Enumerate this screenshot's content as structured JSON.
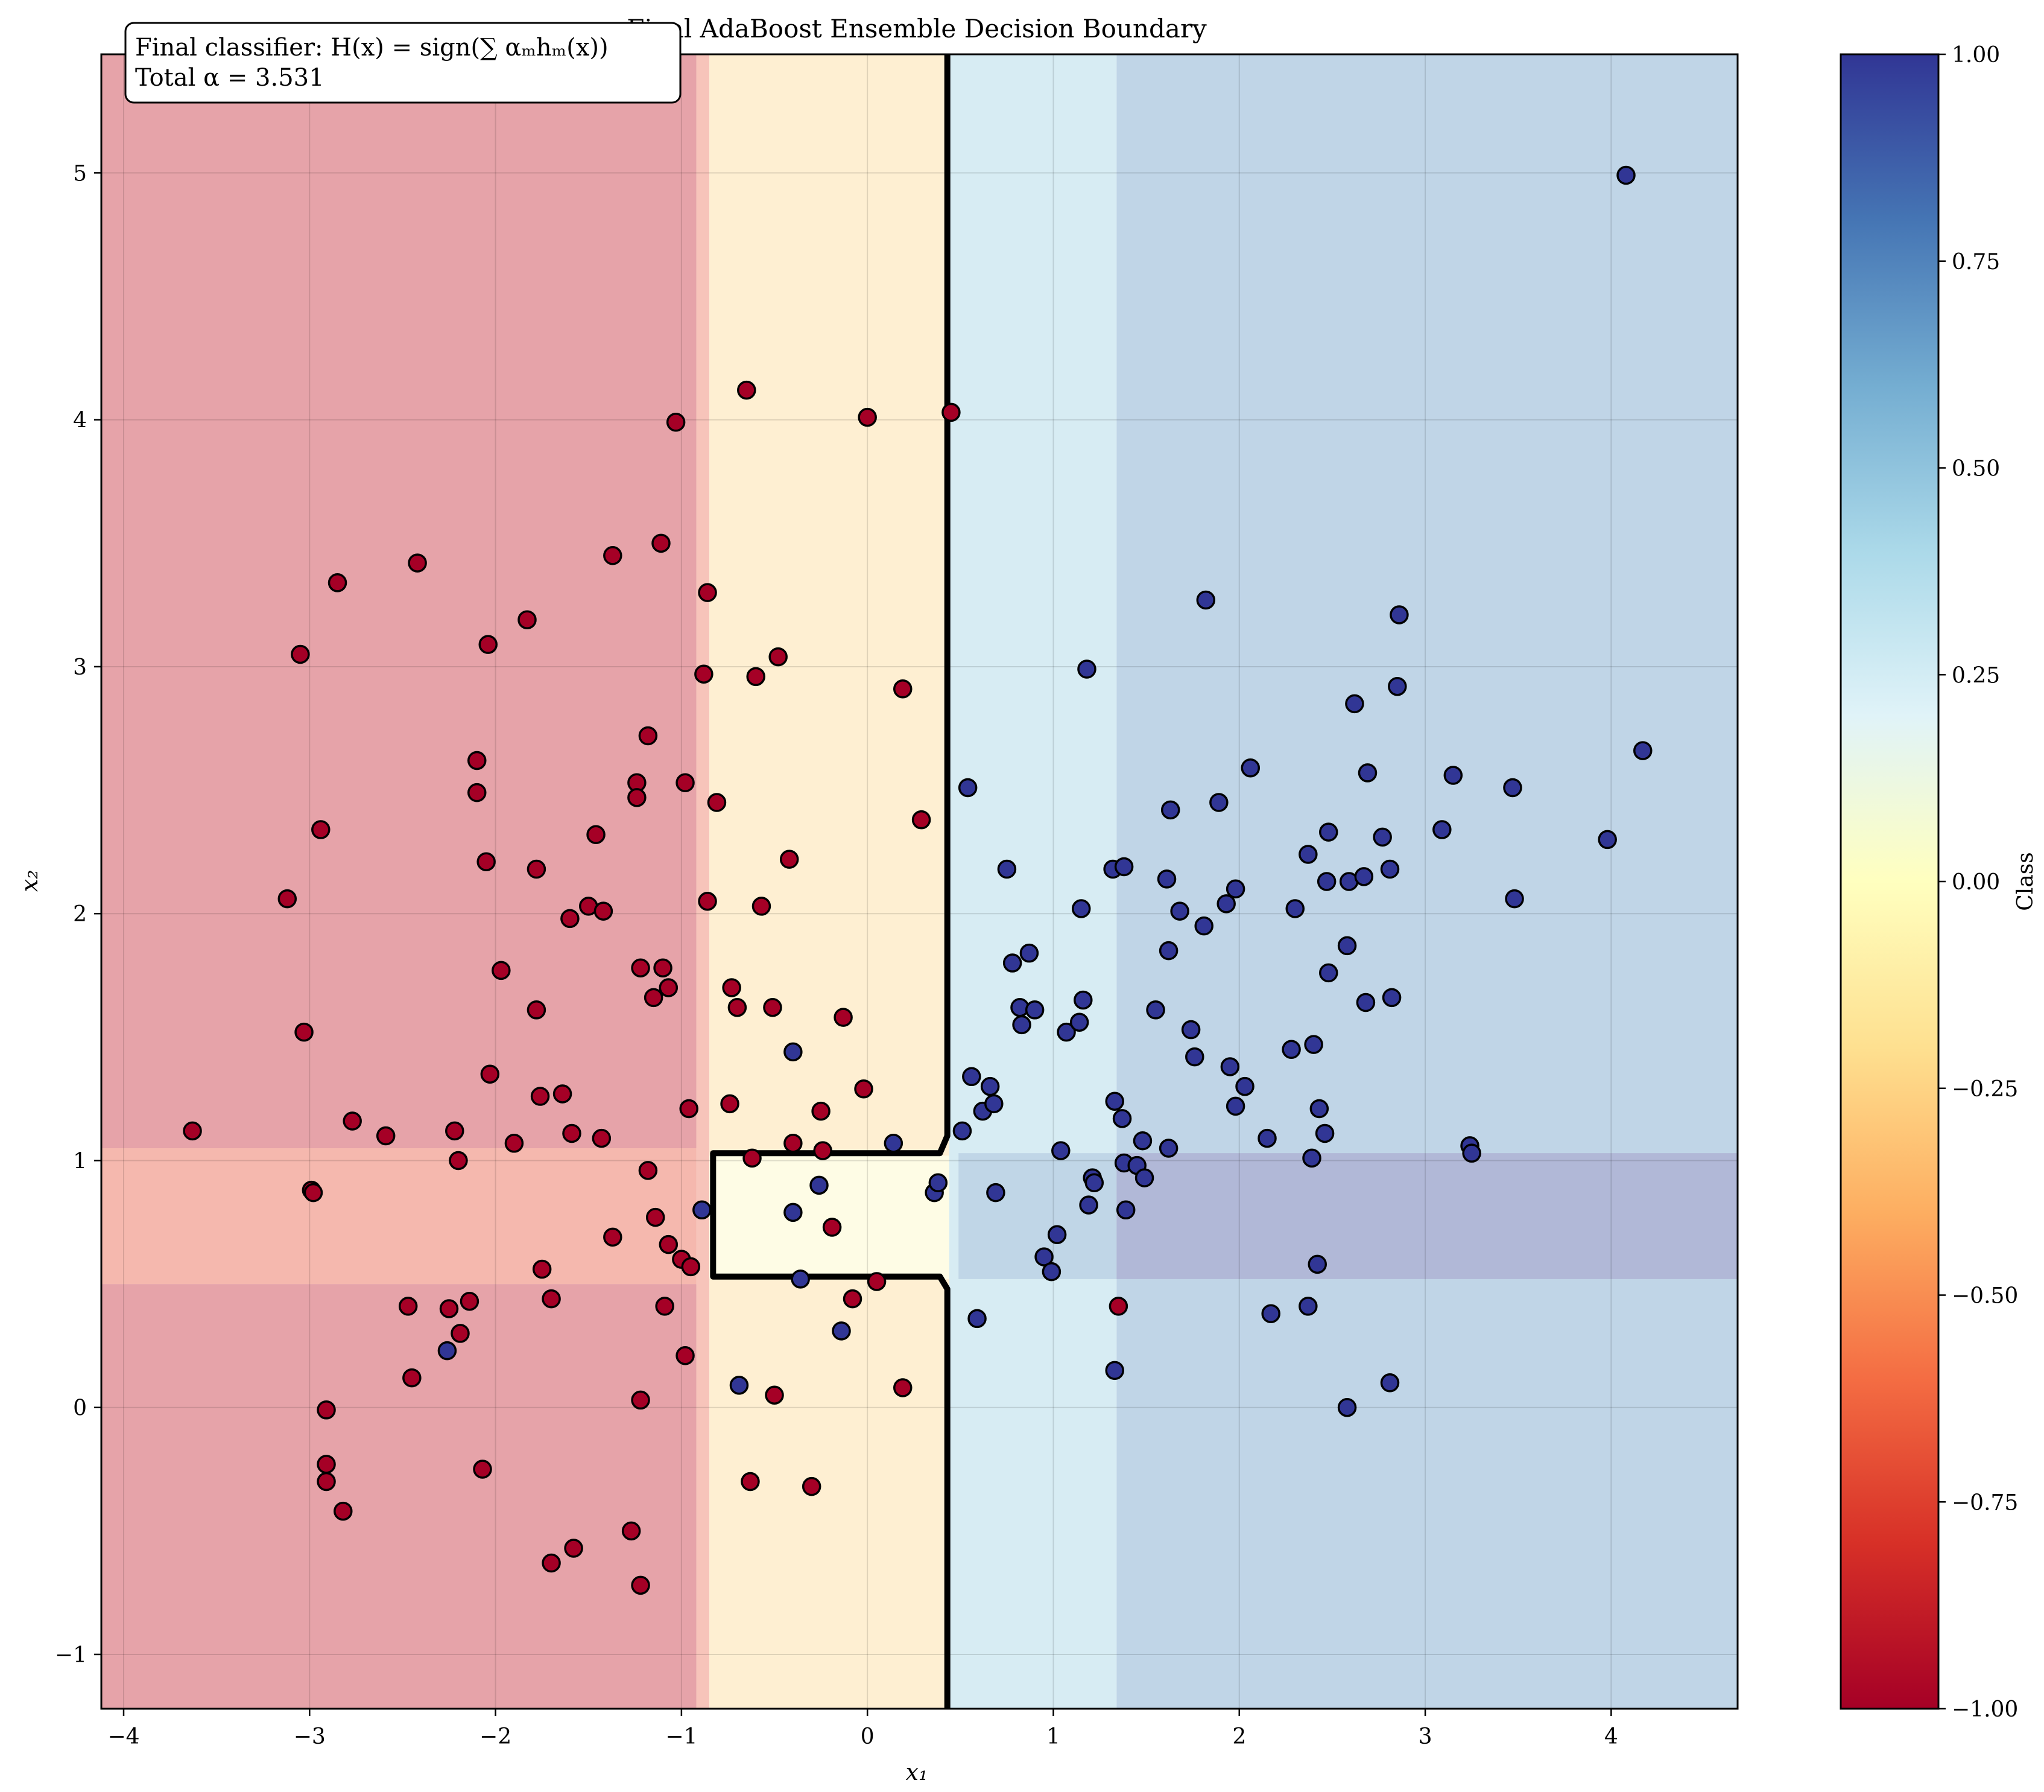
{
  "chart_data": {
    "type": "scatter",
    "title": "Final AdaBoost Ensemble Decision Boundary",
    "xlabel": "x₁",
    "ylabel": "x₂",
    "xlim": [
      -4.12,
      4.68
    ],
    "ylim": [
      -1.22,
      5.48
    ],
    "x_ticks": [
      -4,
      -3,
      -2,
      -1,
      0,
      1,
      2,
      3,
      4
    ],
    "y_ticks": [
      -1,
      0,
      1,
      2,
      3,
      4,
      5
    ],
    "x_tick_labels": [
      "−4",
      "−3",
      "−2",
      "−1",
      "0",
      "1",
      "2",
      "3",
      "4"
    ],
    "y_tick_labels": [
      "−1",
      "0",
      "1",
      "2",
      "3",
      "4",
      "5"
    ],
    "grid": true,
    "annotation": {
      "line1": "Final classifier: H(x) = sign(∑ αₘhₘ(x))",
      "line2": "Total α = 3.531"
    },
    "colorbar": {
      "label": "Class",
      "colormap": "RdYlBu",
      "range": [
        -1,
        1
      ],
      "ticks": [
        -1.0,
        -0.75,
        -0.5,
        -0.25,
        0.0,
        0.25,
        0.5,
        0.75,
        1.0
      ],
      "tick_labels": [
        "−1.00",
        "−0.75",
        "−0.50",
        "−0.25",
        "0.00",
        "0.25",
        "0.50",
        "0.75",
        "1.00"
      ],
      "stops": [
        "#a50026",
        "#d73027",
        "#f46d43",
        "#fdae61",
        "#fee090",
        "#ffffbf",
        "#e0f3f8",
        "#abd9e9",
        "#74add1",
        "#4575b4",
        "#313695"
      ]
    },
    "decision_regions": [
      {
        "x": [
          -4.12,
          -0.92
        ],
        "y": [
          -1.22,
          0.5
        ],
        "color": "#e6a3a9"
      },
      {
        "x": [
          -4.12,
          -0.92
        ],
        "y": [
          0.5,
          1.05
        ],
        "color": "#f5b8ae"
      },
      {
        "x": [
          -4.12,
          -0.92
        ],
        "y": [
          1.05,
          5.48
        ],
        "color": "#e6a3a9"
      },
      {
        "x": [
          -0.92,
          -0.85
        ],
        "y": [
          -1.22,
          5.48
        ],
        "color": "#f7c4ba"
      },
      {
        "x": [
          -0.85,
          0.44
        ],
        "y": [
          -1.22,
          5.48
        ],
        "color": "#feefd2"
      },
      {
        "x": [
          -0.85,
          0.44
        ],
        "y": [
          0.52,
          1.02
        ],
        "color": "#fefce5"
      },
      {
        "x": [
          0.44,
          1.34
        ],
        "y": [
          -1.22,
          5.48
        ],
        "color": "#d7ecf3"
      },
      {
        "x": [
          0.49,
          1.34
        ],
        "y": [
          0.52,
          1.03
        ],
        "color": "#c0d6e7"
      },
      {
        "x": [
          1.34,
          4.68
        ],
        "y": [
          -1.22,
          5.48
        ],
        "color": "#c0d5e7"
      },
      {
        "x": [
          1.34,
          4.68
        ],
        "y": [
          0.52,
          1.03
        ],
        "color": "#b1b8d7"
      }
    ],
    "decision_boundary": [
      [
        [
          0.43,
          -1.22
        ],
        [
          0.43,
          0.48
        ],
        [
          0.39,
          0.53
        ],
        [
          -0.83,
          0.53
        ],
        [
          -0.83,
          1.03
        ],
        [
          0.39,
          1.03
        ],
        [
          0.43,
          1.1
        ],
        [
          0.43,
          5.48
        ]
      ]
    ],
    "series": [
      {
        "class": -1,
        "color": "#a50026",
        "points": [
          [
            -3.63,
            1.12
          ],
          [
            -3.12,
            2.06
          ],
          [
            -3.05,
            3.05
          ],
          [
            -3.03,
            1.52
          ],
          [
            -2.99,
            0.88
          ],
          [
            -2.98,
            0.87
          ],
          [
            -2.94,
            2.34
          ],
          [
            -2.91,
            -0.01
          ],
          [
            -2.91,
            -0.23
          ],
          [
            -2.91,
            -0.3
          ],
          [
            -2.85,
            3.34
          ],
          [
            -2.82,
            -0.42
          ],
          [
            -2.77,
            1.16
          ],
          [
            -2.59,
            1.1
          ],
          [
            -2.47,
            0.41
          ],
          [
            -2.45,
            0.12
          ],
          [
            -2.42,
            3.42
          ],
          [
            -2.25,
            0.4
          ],
          [
            -2.22,
            1.12
          ],
          [
            -2.2,
            1.0
          ],
          [
            -2.19,
            0.3
          ],
          [
            -2.14,
            0.43
          ],
          [
            -2.1,
            2.62
          ],
          [
            -2.1,
            2.49
          ],
          [
            -2.07,
            -0.25
          ],
          [
            -2.05,
            2.21
          ],
          [
            -2.04,
            3.09
          ],
          [
            -2.03,
            1.35
          ],
          [
            -1.97,
            1.77
          ],
          [
            -1.9,
            1.07
          ],
          [
            -1.83,
            3.19
          ],
          [
            -1.78,
            2.18
          ],
          [
            -1.78,
            1.61
          ],
          [
            -1.76,
            1.26
          ],
          [
            -1.75,
            0.56
          ],
          [
            -1.7,
            0.44
          ],
          [
            -1.7,
            -0.63
          ],
          [
            -1.64,
            1.27
          ],
          [
            -1.6,
            1.98
          ],
          [
            -1.59,
            1.11
          ],
          [
            -1.58,
            -0.57
          ],
          [
            -1.5,
            2.03
          ],
          [
            -1.46,
            2.32
          ],
          [
            -1.43,
            1.09
          ],
          [
            -1.42,
            2.01
          ],
          [
            -1.37,
            3.45
          ],
          [
            -1.37,
            0.69
          ],
          [
            -1.27,
            -0.5
          ],
          [
            -1.24,
            2.53
          ],
          [
            -1.24,
            2.47
          ],
          [
            -1.22,
            1.78
          ],
          [
            -1.22,
            0.03
          ],
          [
            -1.22,
            -0.72
          ],
          [
            -1.18,
            2.72
          ],
          [
            -1.18,
            0.96
          ],
          [
            -1.15,
            1.66
          ],
          [
            -1.14,
            0.77
          ],
          [
            -1.11,
            3.5
          ],
          [
            -1.1,
            1.78
          ],
          [
            -1.09,
            0.41
          ],
          [
            -1.07,
            1.7
          ],
          [
            -1.07,
            0.66
          ],
          [
            -1.03,
            3.99
          ],
          [
            -1.0,
            0.6
          ],
          [
            -0.98,
            2.53
          ],
          [
            -0.98,
            0.21
          ],
          [
            -0.96,
            1.21
          ],
          [
            -0.95,
            0.57
          ],
          [
            -0.88,
            2.97
          ],
          [
            -0.86,
            3.3
          ],
          [
            -0.86,
            2.05
          ],
          [
            -0.81,
            2.45
          ],
          [
            -0.74,
            1.23
          ],
          [
            -0.73,
            1.7
          ],
          [
            -0.7,
            1.62
          ],
          [
            -0.65,
            4.12
          ],
          [
            -0.63,
            -0.3
          ],
          [
            -0.62,
            1.01
          ],
          [
            -0.6,
            2.96
          ],
          [
            -0.57,
            2.03
          ],
          [
            -0.51,
            1.62
          ],
          [
            -0.5,
            0.05
          ],
          [
            -0.48,
            3.04
          ],
          [
            -0.42,
            2.22
          ],
          [
            -0.4,
            1.07
          ],
          [
            -0.3,
            -0.32
          ],
          [
            -0.25,
            1.2
          ],
          [
            -0.24,
            1.04
          ],
          [
            -0.19,
            0.73
          ],
          [
            -0.13,
            1.58
          ],
          [
            -0.08,
            0.44
          ],
          [
            -0.02,
            1.29
          ],
          [
            0.0,
            4.01
          ],
          [
            0.05,
            0.51
          ],
          [
            0.19,
            2.91
          ],
          [
            0.19,
            0.08
          ],
          [
            0.29,
            2.38
          ],
          [
            0.45,
            4.03
          ],
          [
            1.35,
            0.41
          ]
        ]
      },
      {
        "class": 1,
        "color": "#313695",
        "points": [
          [
            -2.26,
            0.23
          ],
          [
            -0.89,
            0.8
          ],
          [
            -0.69,
            0.09
          ],
          [
            -0.4,
            1.44
          ],
          [
            -0.4,
            0.79
          ],
          [
            -0.36,
            0.52
          ],
          [
            -0.26,
            0.9
          ],
          [
            -0.14,
            0.31
          ],
          [
            0.14,
            1.07
          ],
          [
            0.36,
            0.87
          ],
          [
            0.38,
            0.91
          ],
          [
            0.51,
            1.12
          ],
          [
            0.54,
            2.51
          ],
          [
            0.56,
            1.34
          ],
          [
            0.59,
            0.36
          ],
          [
            0.62,
            1.2
          ],
          [
            0.66,
            1.3
          ],
          [
            0.68,
            1.23
          ],
          [
            0.69,
            0.87
          ],
          [
            0.75,
            2.18
          ],
          [
            0.78,
            1.8
          ],
          [
            0.82,
            1.62
          ],
          [
            0.83,
            1.55
          ],
          [
            0.87,
            1.84
          ],
          [
            0.9,
            1.61
          ],
          [
            0.95,
            0.61
          ],
          [
            0.99,
            0.55
          ],
          [
            1.02,
            0.7
          ],
          [
            1.04,
            1.04
          ],
          [
            1.07,
            1.52
          ],
          [
            1.14,
            1.56
          ],
          [
            1.15,
            2.02
          ],
          [
            1.16,
            1.65
          ],
          [
            1.18,
            2.99
          ],
          [
            1.19,
            0.82
          ],
          [
            1.21,
            0.93
          ],
          [
            1.22,
            0.91
          ],
          [
            1.32,
            2.18
          ],
          [
            1.33,
            1.24
          ],
          [
            1.33,
            0.15
          ],
          [
            1.37,
            1.17
          ],
          [
            1.38,
            2.19
          ],
          [
            1.38,
            0.99
          ],
          [
            1.39,
            0.8
          ],
          [
            1.45,
            0.98
          ],
          [
            1.48,
            1.08
          ],
          [
            1.49,
            0.93
          ],
          [
            1.55,
            1.61
          ],
          [
            1.61,
            2.14
          ],
          [
            1.62,
            1.85
          ],
          [
            1.62,
            1.05
          ],
          [
            1.63,
            2.42
          ],
          [
            1.68,
            2.01
          ],
          [
            1.74,
            1.53
          ],
          [
            1.76,
            1.42
          ],
          [
            1.81,
            1.95
          ],
          [
            1.82,
            3.27
          ],
          [
            1.89,
            2.45
          ],
          [
            1.93,
            2.04
          ],
          [
            1.95,
            1.38
          ],
          [
            1.98,
            2.1
          ],
          [
            1.98,
            1.22
          ],
          [
            2.03,
            1.3
          ],
          [
            2.06,
            2.59
          ],
          [
            2.15,
            1.09
          ],
          [
            2.17,
            0.38
          ],
          [
            2.28,
            1.45
          ],
          [
            2.3,
            2.02
          ],
          [
            2.37,
            2.24
          ],
          [
            2.37,
            0.41
          ],
          [
            2.39,
            1.01
          ],
          [
            2.4,
            1.47
          ],
          [
            2.42,
            0.58
          ],
          [
            2.43,
            1.21
          ],
          [
            2.46,
            1.11
          ],
          [
            2.47,
            2.13
          ],
          [
            2.48,
            1.76
          ],
          [
            2.48,
            2.33
          ],
          [
            2.58,
            1.87
          ],
          [
            2.58,
            0.0
          ],
          [
            2.59,
            2.13
          ],
          [
            2.62,
            2.85
          ],
          [
            2.67,
            2.15
          ],
          [
            2.68,
            1.64
          ],
          [
            2.69,
            2.57
          ],
          [
            2.77,
            2.31
          ],
          [
            2.81,
            2.18
          ],
          [
            2.81,
            0.1
          ],
          [
            2.82,
            1.66
          ],
          [
            2.85,
            2.92
          ],
          [
            2.86,
            3.21
          ],
          [
            3.09,
            2.34
          ],
          [
            3.15,
            2.56
          ],
          [
            3.24,
            1.06
          ],
          [
            3.25,
            1.03
          ],
          [
            3.47,
            2.51
          ],
          [
            3.48,
            2.06
          ],
          [
            3.98,
            2.3
          ],
          [
            4.08,
            4.99
          ],
          [
            4.17,
            2.66
          ]
        ]
      }
    ]
  }
}
